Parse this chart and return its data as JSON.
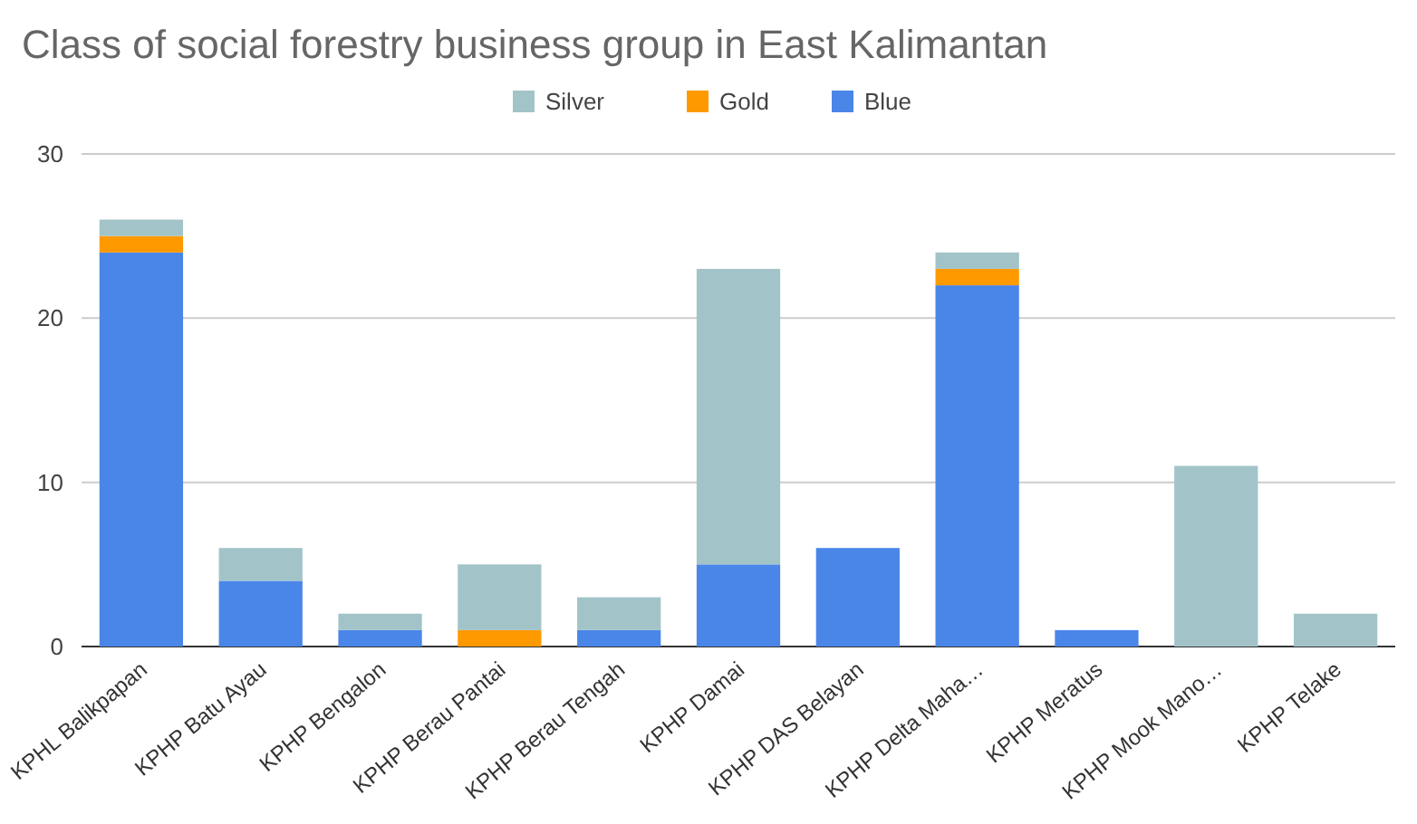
{
  "chart_data": {
    "type": "bar",
    "title": "Class of social forestry business group in East Kalimantan",
    "stacked": true,
    "legend": "top",
    "grid": "y",
    "categories": [
      "KPHL Balikpapan",
      "KPHP Batu Ayau",
      "KPHP Bengalon",
      "KPHP Berau Pantai",
      "KPHP Berau Tengah",
      "KPHP Damai",
      "KPHP DAS Belayan",
      "KPHP Delta Maha…",
      "KPHP Meratus",
      "KPHP Mook Mano…",
      "KPHP Telake"
    ],
    "series": [
      {
        "name": "Blue",
        "color": "#4a86e8",
        "values": [
          24,
          4,
          1,
          0,
          1,
          5,
          6,
          22,
          1,
          0,
          0
        ]
      },
      {
        "name": "Gold",
        "color": "#ff9900",
        "values": [
          1,
          0,
          0,
          1,
          0,
          0,
          0,
          1,
          0,
          0,
          0
        ]
      },
      {
        "name": "Silver",
        "color": "#a2c4c9",
        "values": [
          1,
          2,
          1,
          4,
          2,
          18,
          0,
          1,
          0,
          11,
          2
        ]
      }
    ],
    "ylim": [
      0,
      30
    ],
    "yticks": [
      0,
      10,
      20,
      30
    ]
  }
}
